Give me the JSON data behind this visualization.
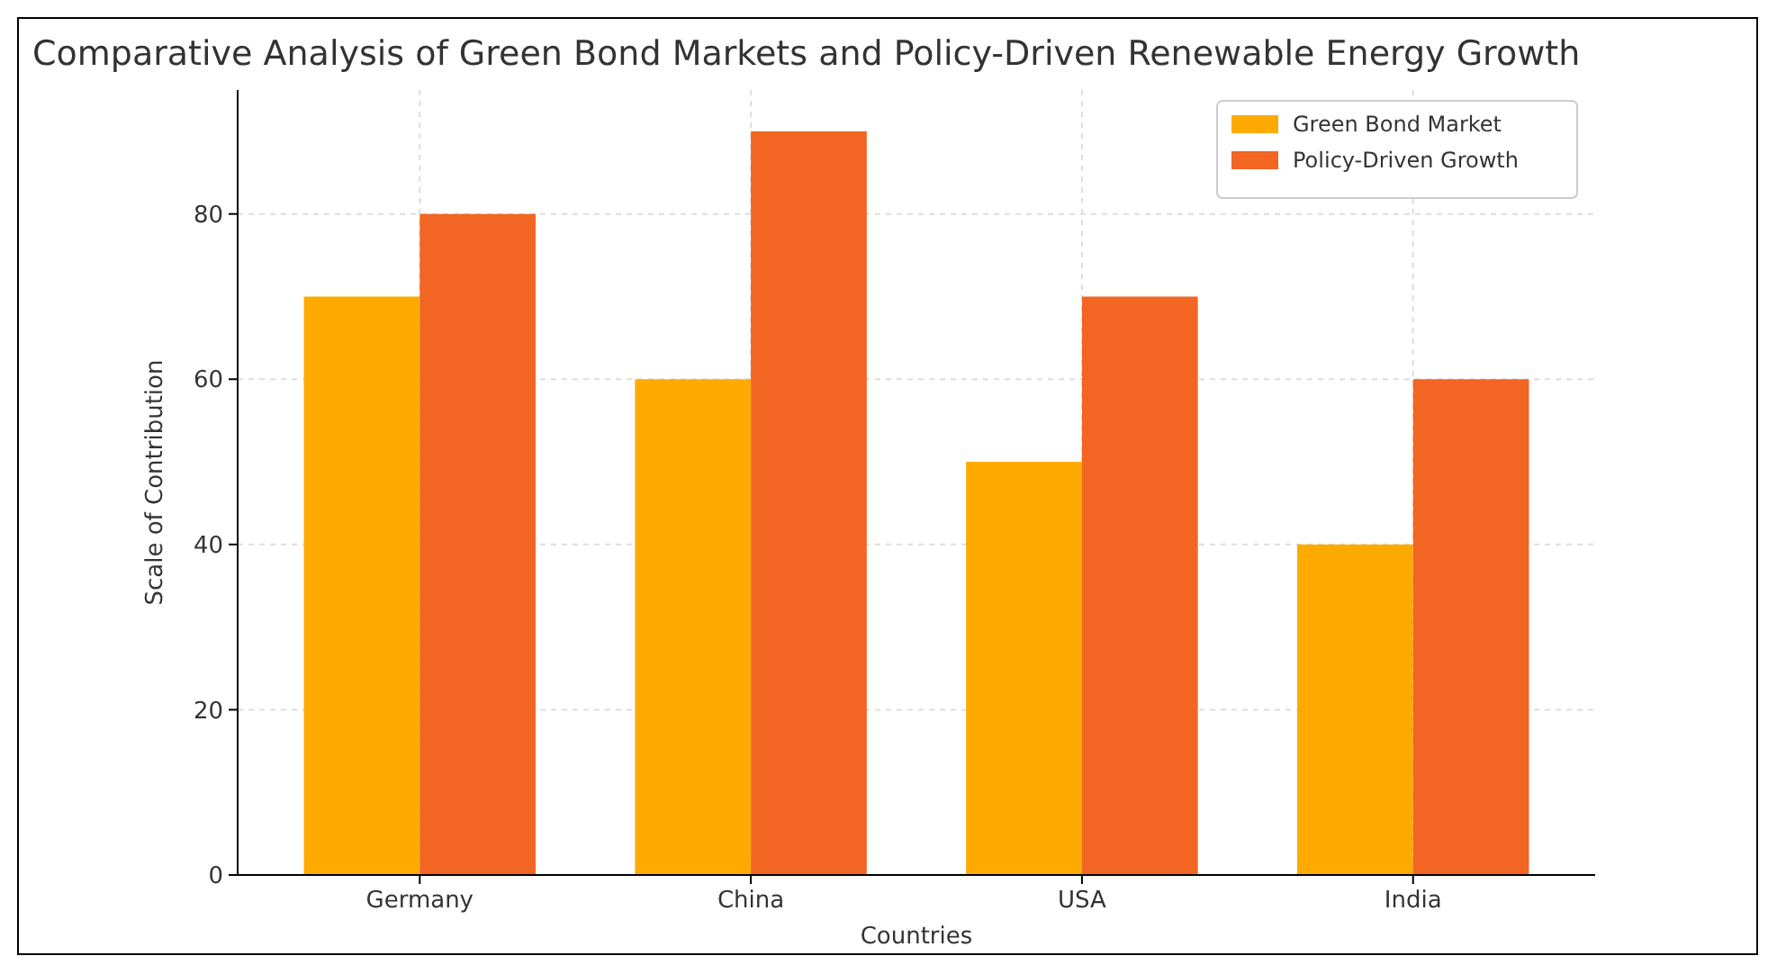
{
  "chart_data": {
    "type": "bar",
    "title": "Comparative Analysis of Green Bond Markets and Policy-Driven Renewable Energy Growth",
    "xlabel": "Countries",
    "ylabel": "Scale of Contribution",
    "categories": [
      "Germany",
      "China",
      "USA",
      "India"
    ],
    "series": [
      {
        "name": "Green Bond Market",
        "color": "#ffaa00",
        "values": [
          70,
          60,
          50,
          40
        ]
      },
      {
        "name": "Policy-Driven Growth",
        "color": "#f26522",
        "values": [
          80,
          90,
          70,
          60
        ]
      }
    ],
    "ylim": [
      0,
      95
    ],
    "yticks": [
      0,
      20,
      40,
      60,
      80
    ],
    "grid": true,
    "legend": "top right"
  }
}
